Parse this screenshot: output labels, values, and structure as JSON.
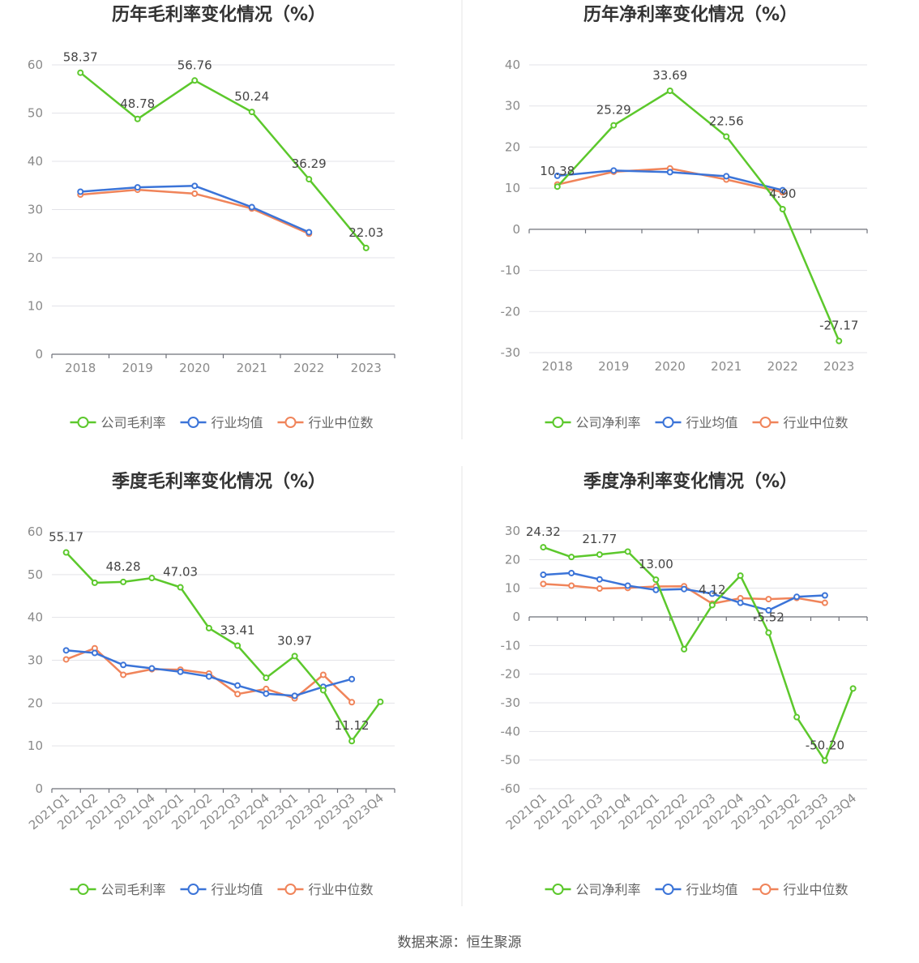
{
  "source_text": "数据来源：恒生聚源",
  "chart_data": [
    {
      "type": "line",
      "title": "历年毛利率变化情况（%）",
      "categories": [
        "2018",
        "2019",
        "2020",
        "2021",
        "2022",
        "2023"
      ],
      "ylim": [
        0,
        60
      ],
      "yticks": [
        0,
        10,
        20,
        30,
        40,
        50,
        60
      ],
      "legend_position": "bottom",
      "series": [
        {
          "name": "公司毛利率",
          "color": "#5cc82c",
          "values": [
            58.37,
            48.78,
            56.76,
            50.24,
            36.29,
            22.03
          ],
          "labels": [
            "58.37",
            "48.78",
            "56.76",
            "50.24",
            "36.29",
            "22.03"
          ]
        },
        {
          "name": "行业均值",
          "color": "#3b74d8",
          "values": [
            33.7,
            34.6,
            34.9,
            30.5,
            25.3,
            null
          ]
        },
        {
          "name": "行业中位数",
          "color": "#f0845a",
          "values": [
            33.1,
            34.1,
            33.3,
            30.2,
            25.0,
            null
          ]
        }
      ]
    },
    {
      "type": "line",
      "title": "历年净利率变化情况（%）",
      "categories": [
        "2018",
        "2019",
        "2020",
        "2021",
        "2022",
        "2023"
      ],
      "ylim": [
        -30,
        40
      ],
      "yticks": [
        -30,
        -20,
        -10,
        0,
        10,
        20,
        30,
        40
      ],
      "legend_position": "bottom",
      "series": [
        {
          "name": "公司净利率",
          "color": "#5cc82c",
          "values": [
            10.38,
            25.29,
            33.69,
            22.56,
            4.9,
            -27.17
          ],
          "labels": [
            "10.38",
            "25.29",
            "33.69",
            "22.56",
            "4.90",
            "-27.17"
          ]
        },
        {
          "name": "行业均值",
          "color": "#3b74d8",
          "values": [
            13.0,
            14.3,
            13.9,
            12.9,
            9.5,
            null
          ]
        },
        {
          "name": "行业中位数",
          "color": "#f0845a",
          "values": [
            10.9,
            14.0,
            14.8,
            12.1,
            9.0,
            null
          ]
        }
      ]
    },
    {
      "type": "line",
      "title": "季度毛利率变化情况（%）",
      "categories": [
        "2021Q1",
        "2021Q2",
        "2021Q3",
        "2021Q4",
        "2022Q1",
        "2022Q2",
        "2022Q3",
        "2022Q4",
        "2023Q1",
        "2023Q2",
        "2023Q3",
        "2023Q4"
      ],
      "ylim": [
        0,
        60
      ],
      "yticks": [
        0,
        10,
        20,
        30,
        40,
        50,
        60
      ],
      "legend_position": "bottom",
      "series": [
        {
          "name": "公司毛利率",
          "color": "#5cc82c",
          "values": [
            55.17,
            48.1,
            48.28,
            49.2,
            47.03,
            37.5,
            33.41,
            25.9,
            30.97,
            23.0,
            11.12,
            20.3
          ],
          "labels": [
            "55.17",
            "",
            "48.28",
            "",
            "47.03",
            "",
            "33.41",
            "",
            "30.97",
            "",
            "11.12",
            ""
          ]
        },
        {
          "name": "行业均值",
          "color": "#3b74d8",
          "values": [
            32.3,
            31.7,
            28.9,
            28.1,
            27.3,
            26.2,
            24.1,
            22.2,
            21.7,
            23.8,
            25.6,
            null
          ]
        },
        {
          "name": "行业中位数",
          "color": "#f0845a",
          "values": [
            30.2,
            32.8,
            26.6,
            27.9,
            27.8,
            26.9,
            22.1,
            23.3,
            21.1,
            26.6,
            20.2,
            null
          ]
        }
      ]
    },
    {
      "type": "line",
      "title": "季度净利率变化情况（%）",
      "categories": [
        "2021Q1",
        "2021Q2",
        "2021Q3",
        "2021Q4",
        "2022Q1",
        "2022Q2",
        "2022Q3",
        "2022Q4",
        "2023Q1",
        "2023Q2",
        "2023Q3",
        "2023Q4"
      ],
      "ylim": [
        -60,
        30
      ],
      "yticks": [
        -60,
        -50,
        -40,
        -30,
        -20,
        -10,
        0,
        10,
        20,
        30
      ],
      "legend_position": "bottom",
      "series": [
        {
          "name": "公司净利率",
          "color": "#5cc82c",
          "values": [
            24.32,
            20.9,
            21.77,
            22.8,
            13.0,
            -11.3,
            4.12,
            14.4,
            -5.52,
            -35.0,
            -50.2,
            -25.0
          ],
          "labels": [
            "24.32",
            "",
            "21.77",
            "",
            "13.00",
            "",
            "4.12",
            "",
            "-5.52",
            "",
            "-50.20",
            ""
          ]
        },
        {
          "name": "行业均值",
          "color": "#3b74d8",
          "values": [
            14.7,
            15.3,
            13.1,
            10.9,
            9.4,
            9.7,
            8.1,
            4.9,
            2.3,
            7.0,
            7.5,
            null
          ]
        },
        {
          "name": "行业中位数",
          "color": "#f0845a",
          "values": [
            11.5,
            10.9,
            9.9,
            10.1,
            10.6,
            10.7,
            4.6,
            6.5,
            6.2,
            6.6,
            4.9,
            null
          ]
        }
      ]
    }
  ]
}
